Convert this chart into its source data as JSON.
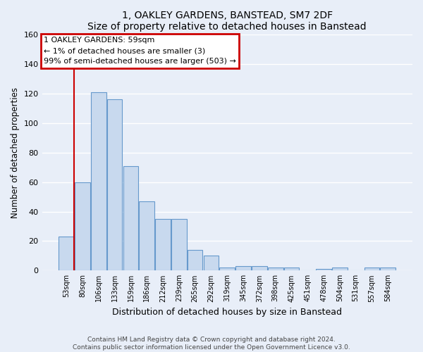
{
  "title": "1, OAKLEY GARDENS, BANSTEAD, SM7 2DF",
  "subtitle": "Size of property relative to detached houses in Banstead",
  "xlabel": "Distribution of detached houses by size in Banstead",
  "ylabel": "Number of detached properties",
  "categories": [
    "53sqm",
    "80sqm",
    "106sqm",
    "133sqm",
    "159sqm",
    "186sqm",
    "212sqm",
    "239sqm",
    "265sqm",
    "292sqm",
    "319sqm",
    "345sqm",
    "372sqm",
    "398sqm",
    "425sqm",
    "451sqm",
    "478sqm",
    "504sqm",
    "531sqm",
    "557sqm",
    "584sqm"
  ],
  "values": [
    23,
    60,
    121,
    116,
    71,
    47,
    35,
    35,
    14,
    10,
    2,
    3,
    3,
    2,
    2,
    0,
    1,
    2,
    0,
    2,
    2
  ],
  "bar_color": "#c8d9ee",
  "bar_edge_color": "#6699cc",
  "highlight_line_color": "#cc0000",
  "annotation_text": "1 OAKLEY GARDENS: 59sqm\n← 1% of detached houses are smaller (3)\n99% of semi-detached houses are larger (503) →",
  "annotation_box_color": "#cc0000",
  "annotation_text_color": "#000000",
  "ylim": [
    0,
    160
  ],
  "yticks": [
    0,
    20,
    40,
    60,
    80,
    100,
    120,
    140,
    160
  ],
  "bg_color": "#e8eef8",
  "grid_color": "#ffffff",
  "footer": "Contains HM Land Registry data © Crown copyright and database right 2024.\nContains public sector information licensed under the Open Government Licence v3.0."
}
